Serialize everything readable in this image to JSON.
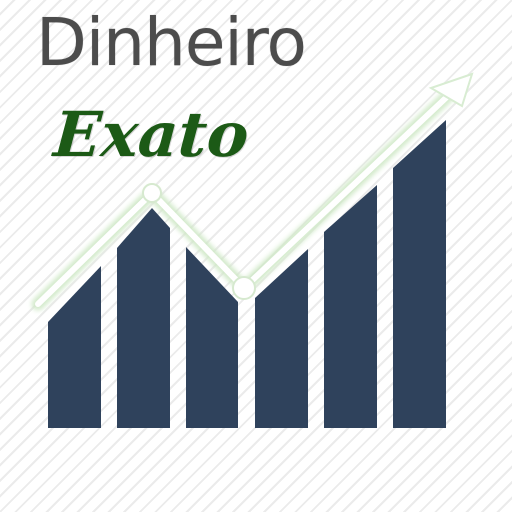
{
  "logo": {
    "title": "Dinheiro",
    "subtitle": "Exato"
  },
  "colors": {
    "bar": "#2f425c",
    "title": "#4c4c4c",
    "subtitle": "#1c5a16",
    "trend_line": "#ffffff",
    "trend_glow": "#cfe8c6"
  },
  "icon": "growth-chart-icon"
}
